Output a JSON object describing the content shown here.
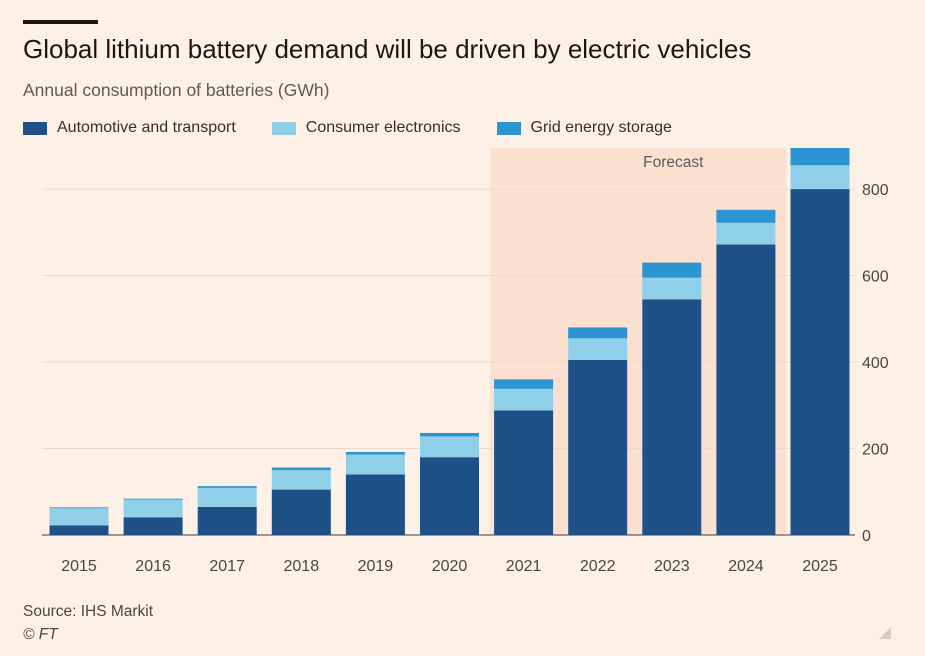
{
  "header": {
    "title": "Global lithium battery demand will be driven by electric vehicles",
    "subtitle": "Annual consumption of batteries (GWh)"
  },
  "legend": [
    {
      "label": "Automotive and transport",
      "color": "#1f5186"
    },
    {
      "label": "Consumer electronics",
      "color": "#8fd0e8"
    },
    {
      "label": "Grid energy storage",
      "color": "#2b94d1"
    }
  ],
  "footer": {
    "source": "Source: IHS Markit",
    "credit": "© FT"
  },
  "chart_data": {
    "type": "bar",
    "stacked": true,
    "categories": [
      "2015",
      "2016",
      "2017",
      "2018",
      "2019",
      "2020",
      "2021",
      "2022",
      "2023",
      "2024",
      "2025"
    ],
    "series": [
      {
        "name": "Automotive and transport",
        "color": "#1f5186",
        "values": [
          22,
          41,
          65,
          105,
          140,
          180,
          288,
          405,
          545,
          672,
          800
        ]
      },
      {
        "name": "Consumer electronics",
        "color": "#8fd0e8",
        "values": [
          40,
          41,
          44,
          45,
          46,
          48,
          50,
          50,
          50,
          50,
          55
        ]
      },
      {
        "name": "Grid energy storage",
        "color": "#2b94d1",
        "values": [
          2,
          2,
          4,
          6,
          6,
          8,
          22,
          25,
          35,
          30,
          40
        ]
      }
    ],
    "forecast_label": "Forecast",
    "forecast_start": "2021",
    "forecast_end": "2025",
    "ylim": [
      0,
      895
    ],
    "yticks": [
      0,
      200,
      400,
      600,
      800
    ],
    "axis_side": "right",
    "grid": true
  }
}
